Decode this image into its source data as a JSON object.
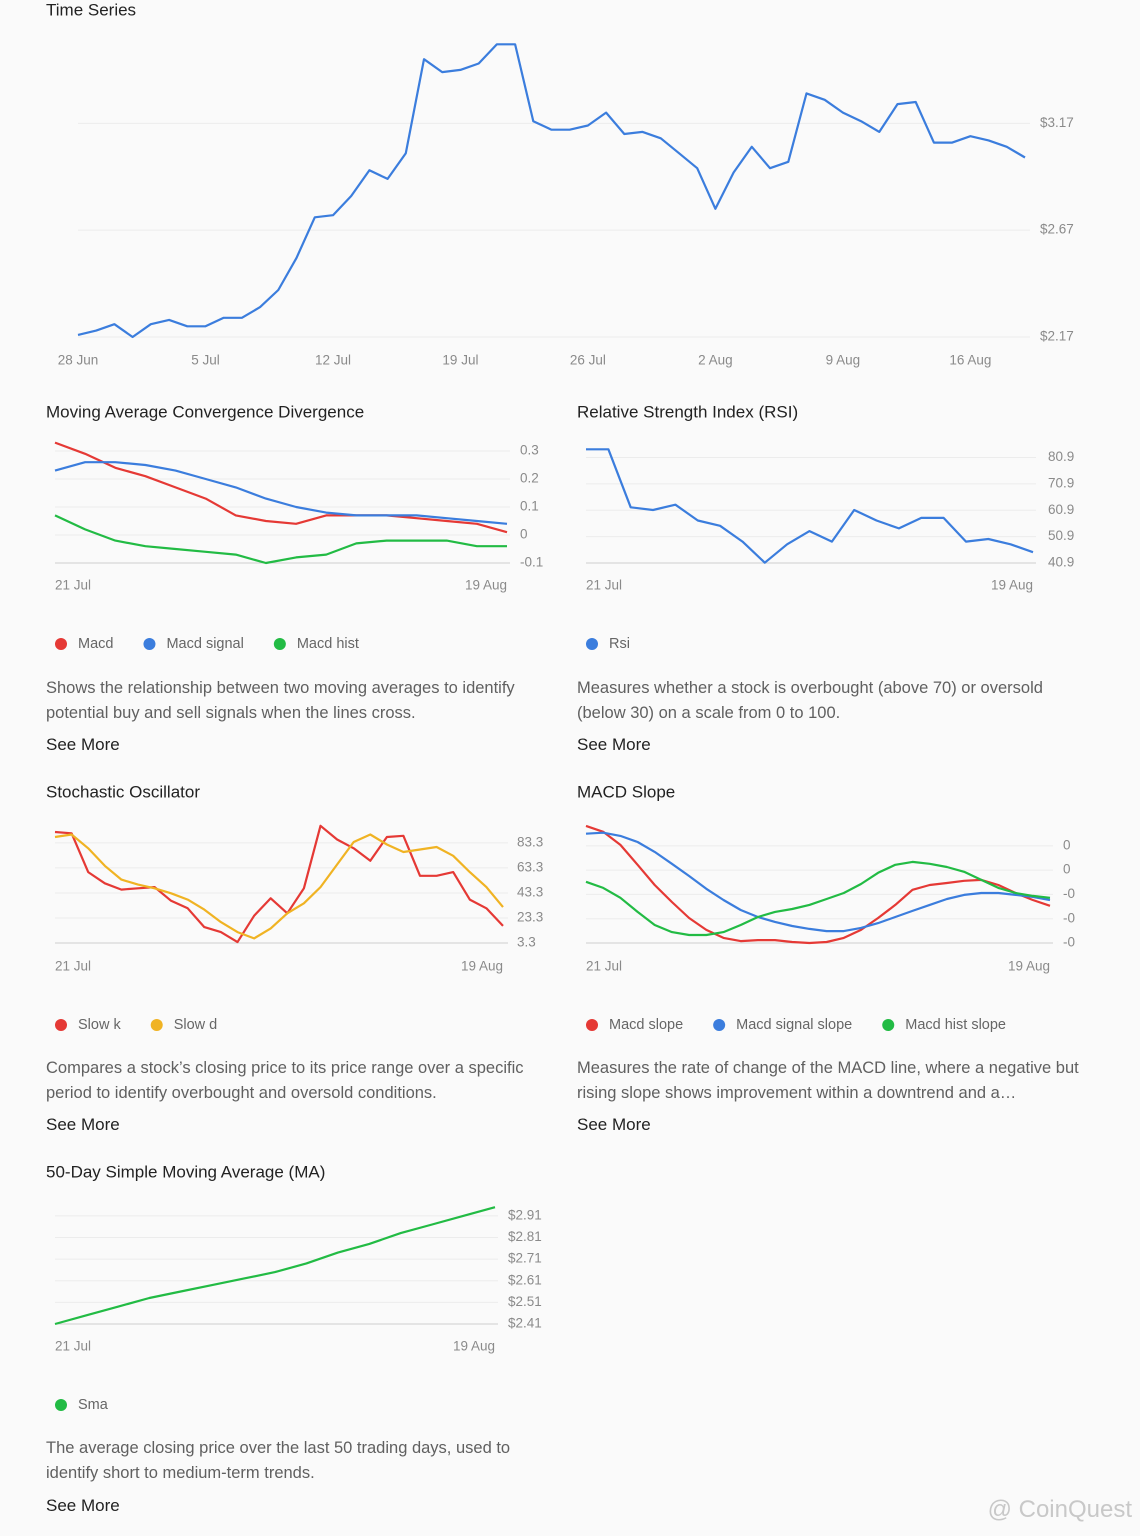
{
  "watermark": "@ CoinQuest",
  "chart_data": [
    {
      "type": "line",
      "title": "Time Series",
      "grid": true,
      "categories": [
        "28 Jun",
        null,
        null,
        null,
        null,
        null,
        null,
        "5 Jul",
        null,
        null,
        null,
        null,
        null,
        null,
        "12 Jul",
        null,
        null,
        null,
        null,
        null,
        null,
        "19 Jul",
        null,
        null,
        null,
        null,
        null,
        null,
        "26 Jul",
        null,
        null,
        null,
        null,
        null,
        null,
        "2 Aug",
        null,
        null,
        null,
        null,
        null,
        null,
        "9 Aug",
        null,
        null,
        null,
        null,
        null,
        null,
        "16 Aug",
        null,
        null,
        null
      ],
      "series": [
        {
          "name": "Price",
          "color": "#3b7ddd",
          "values": [
            2.18,
            2.2,
            2.23,
            2.17,
            2.23,
            2.25,
            2.22,
            2.22,
            2.26,
            2.26,
            2.31,
            2.39,
            2.54,
            2.73,
            2.74,
            2.83,
            2.95,
            2.91,
            3.03,
            3.47,
            3.41,
            3.42,
            3.45,
            3.54,
            3.54,
            3.18,
            3.14,
            3.14,
            3.16,
            3.22,
            3.12,
            3.13,
            3.1,
            3.03,
            2.96,
            2.77,
            2.94,
            3.06,
            2.96,
            2.99,
            3.31,
            3.28,
            3.22,
            3.18,
            3.13,
            3.26,
            3.27,
            3.08,
            3.08,
            3.11,
            3.09,
            3.06,
            3.01
          ]
        }
      ],
      "ylim": [
        2.17,
        3.56
      ],
      "yticks": [
        {
          "value": 2.17,
          "label": "$2.17"
        },
        {
          "value": 2.67,
          "label": "$2.67"
        },
        {
          "value": 3.17,
          "label": "$3.17"
        }
      ]
    },
    {
      "type": "line",
      "title": "Moving Average Convergence Divergence",
      "grid": true,
      "legend": true,
      "categories": [
        "21 Jul",
        null,
        null,
        null,
        null,
        null,
        null,
        null,
        null,
        null,
        null,
        null,
        null,
        null,
        null,
        "19 Aug"
      ],
      "series": [
        {
          "name": "Macd",
          "color": "#e53935",
          "values": [
            0.33,
            0.29,
            0.24,
            0.21,
            0.17,
            0.13,
            0.07,
            0.05,
            0.04,
            0.07,
            0.07,
            0.07,
            0.06,
            0.05,
            0.04,
            0.01
          ]
        },
        {
          "name": "Macd signal",
          "color": "#3b7ddd",
          "values": [
            0.23,
            0.26,
            0.26,
            0.25,
            0.23,
            0.2,
            0.17,
            0.13,
            0.1,
            0.08,
            0.07,
            0.07,
            0.07,
            0.06,
            0.05,
            0.04
          ]
        },
        {
          "name": "Macd hist",
          "color": "#22bb44",
          "values": [
            0.07,
            0.02,
            -0.02,
            -0.04,
            -0.05,
            -0.06,
            -0.07,
            -0.1,
            -0.08,
            -0.07,
            -0.03,
            -0.02,
            -0.02,
            -0.02,
            -0.04,
            -0.04
          ]
        }
      ],
      "ylim": [
        -0.1,
        0.35
      ],
      "yticks": [
        -0.1,
        0,
        0.1,
        0.2,
        0.3
      ],
      "description": "Shows the relationship between two moving averages to identify potential buy and sell signals when the lines cross.",
      "link": "See More"
    },
    {
      "type": "line",
      "title": "Relative Strength Index (RSI)",
      "grid": true,
      "legend": true,
      "categories": [
        "21 Jul",
        null,
        null,
        null,
        null,
        null,
        null,
        null,
        null,
        null,
        null,
        null,
        null,
        null,
        null,
        null,
        null,
        null,
        null,
        null,
        "19 Aug"
      ],
      "series": [
        {
          "name": "Rsi",
          "color": "#3b7ddd",
          "values": [
            84,
            84,
            62,
            61,
            63,
            57,
            55,
            49,
            41,
            48,
            53,
            49,
            61,
            57,
            54,
            58,
            58,
            49,
            50,
            48,
            45
          ]
        }
      ],
      "ylim": [
        40.9,
        86
      ],
      "yticks": [
        40.9,
        50.9,
        60.9,
        70.9,
        80.9
      ],
      "description": "Measures whether a stock is overbought (above 70) or oversold (below 30) on a scale from 0 to 100.",
      "link": "See More"
    },
    {
      "type": "line",
      "title": "Stochastic Oscillator",
      "grid": true,
      "legend": true,
      "categories": [
        "21 Jul",
        null,
        null,
        null,
        null,
        null,
        null,
        null,
        null,
        null,
        null,
        null,
        null,
        null,
        null,
        null,
        null,
        null,
        null,
        null,
        null,
        null,
        null,
        null,
        null,
        null,
        null,
        "19 Aug"
      ],
      "series": [
        {
          "name": "Slow k",
          "color": "#e53935",
          "values": [
            92,
            91,
            60,
            51,
            46,
            47,
            48,
            37,
            31,
            16,
            12,
            4,
            25,
            39,
            27,
            47,
            97,
            86,
            79,
            69,
            88,
            89,
            57,
            57,
            60,
            38,
            31,
            17
          ]
        },
        {
          "name": "Slow d",
          "color": "#f0b323",
          "values": [
            88,
            90,
            79,
            65,
            54,
            50,
            47,
            43,
            38,
            30,
            20,
            12,
            7,
            15,
            27,
            35,
            48,
            66,
            84,
            90,
            82,
            76,
            78,
            80,
            73,
            60,
            48,
            32
          ]
        }
      ],
      "ylim": [
        3.3,
        100
      ],
      "yticks": [
        3.3,
        23.3,
        43.3,
        63.3,
        83.3
      ],
      "description": "Compares a stock’s closing price to its price range over a specific period to identify overbought and oversold conditions.",
      "link": "See More"
    },
    {
      "type": "line",
      "title": "MACD Slope",
      "grid": true,
      "legend": true,
      "categories": [
        "21 Jul",
        null,
        null,
        null,
        null,
        null,
        null,
        null,
        null,
        null,
        null,
        null,
        null,
        null,
        null,
        null,
        null,
        null,
        null,
        null,
        null,
        null,
        null,
        null,
        null,
        null,
        null,
        "19 Aug"
      ],
      "series": [
        {
          "name": "Macd slope",
          "color": "#e53935",
          "values": [
            0.00232,
            0.00208,
            0.00154,
            0.00072,
            -0.00011,
            -0.00081,
            -0.00147,
            -0.00196,
            -0.00229,
            -0.00242,
            -0.00238,
            -0.00238,
            -0.00246,
            -0.0025,
            -0.00246,
            -0.00229,
            -0.00196,
            -0.00147,
            -0.00093,
            -0.00031,
            -0.00011,
            -3e-05,
            6e-05,
            0.0001,
            -0.00011,
            -0.00044,
            -0.00073,
            -0.00097
          ]
        },
        {
          "name": "Macd signal slope",
          "color": "#3b7ddd",
          "values": [
            0.002,
            0.00204,
            0.00191,
            0.00166,
            0.00125,
            0.00076,
            0.00026,
            -0.00027,
            -0.00073,
            -0.00114,
            -0.00143,
            -0.00163,
            -0.0018,
            -0.00192,
            -0.00201,
            -0.00201,
            -0.00188,
            -0.00168,
            -0.00143,
            -0.00118,
            -0.00093,
            -0.00069,
            -0.00052,
            -0.00044,
            -0.00044,
            -0.00052,
            -0.0006,
            -0.00073
          ]
        },
        {
          "name": "Macd hist slope",
          "color": "#22bb44",
          "values": [
            2e-05,
            -0.00023,
            -0.00064,
            -0.00122,
            -0.00176,
            -0.00205,
            -0.00217,
            -0.00217,
            -0.00205,
            -0.00176,
            -0.00143,
            -0.00122,
            -0.0011,
            -0.00093,
            -0.00069,
            -0.00044,
            -7e-05,
            0.00039,
            0.00072,
            0.00084,
            0.00076,
            0.00063,
            0.00043,
            0.0001,
            -0.00023,
            -0.00044,
            -0.00056,
            -0.00064
          ]
        }
      ],
      "ylim": [
        -0.0025,
        0.0024
      ],
      "yticks": [
        {
          "value": -0.0025,
          "label": "-0"
        },
        {
          "value": -0.0015,
          "label": "-0"
        },
        {
          "value": -0.0005,
          "label": "-0"
        },
        {
          "value": 0.0005,
          "label": "0"
        },
        {
          "value": 0.0015,
          "label": "0"
        }
      ],
      "description": "Measures the rate of change of the MACD line, where a negative but rising slope shows improvement within a downtrend and a…",
      "link": "See More"
    },
    {
      "type": "line",
      "title": "50-Day Simple Moving Average (MA)",
      "grid": true,
      "legend": true,
      "categories": [
        "21 Jul",
        null,
        null,
        null,
        null,
        null,
        null,
        null,
        null,
        null,
        null,
        null,
        null,
        null,
        "19 Aug"
      ],
      "series": [
        {
          "name": "Sma",
          "color": "#22bb44",
          "values": [
            2.41,
            2.45,
            2.49,
            2.53,
            2.56,
            2.59,
            2.62,
            2.65,
            2.69,
            2.74,
            2.78,
            2.83,
            2.87,
            2.91,
            2.95
          ]
        }
      ],
      "ylim": [
        2.41,
        2.96
      ],
      "yticks": [
        {
          "value": 2.41,
          "label": "$2.41"
        },
        {
          "value": 2.51,
          "label": "$2.51"
        },
        {
          "value": 2.61,
          "label": "$2.61"
        },
        {
          "value": 2.71,
          "label": "$2.71"
        },
        {
          "value": 2.81,
          "label": "$2.81"
        },
        {
          "value": 2.91,
          "label": "$2.91"
        }
      ],
      "description": "The average closing price over the last 50 trading days, used to identify short to medium-term trends.",
      "link": "See More"
    }
  ]
}
